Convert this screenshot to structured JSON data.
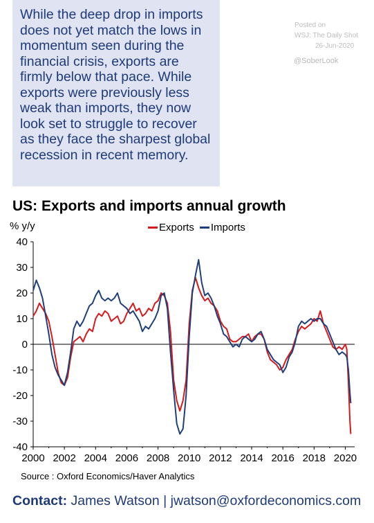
{
  "callout_text": "While the deep drop in imports does not yet match the lows in momentum seen during the financial crisis, exports are firmly below that pace. While exports were previously less weak than imports, they now look set to struggle to recover as they face the sharpest global recession in recent memory.",
  "posted": {
    "line1": "Posted on",
    "line2": "WSJ: The Daily Shot",
    "line3": "26-Jun-2020"
  },
  "handle": "@SoberLook",
  "source": "Source : Oxford Economics/Haver Analytics",
  "contact": {
    "label": "Contact:",
    "text": "James Watson | jwatson@oxfordeconomics.com"
  },
  "colors": {
    "exports": "#d7191c",
    "imports": "#1f3f7a",
    "callout_bg": "#dfe3f2",
    "brand": "#1e3a78"
  },
  "chart_data": {
    "type": "line",
    "title": "US: Exports and imports annual growth",
    "ylabel": "% y/y",
    "ylim": [
      -40,
      40
    ],
    "xlim": [
      2000,
      2020.6
    ],
    "yticks": [
      "40",
      "30",
      "20",
      "10",
      "0",
      "-10",
      "-20",
      "-30",
      "-40"
    ],
    "xticks": [
      "2000",
      "2002",
      "2004",
      "2006",
      "2008",
      "2010",
      "2012",
      "2014",
      "2016",
      "2018",
      "2020"
    ],
    "grid": false,
    "legend": "top-center",
    "series": [
      {
        "name": "Exports",
        "points": [
          [
            2000.0,
            11
          ],
          [
            2000.2,
            13
          ],
          [
            2000.4,
            16
          ],
          [
            2000.6,
            14
          ],
          [
            2000.8,
            12
          ],
          [
            2001.0,
            9
          ],
          [
            2001.2,
            3
          ],
          [
            2001.4,
            -4
          ],
          [
            2001.6,
            -11
          ],
          [
            2001.8,
            -15
          ],
          [
            2002.0,
            -16
          ],
          [
            2002.2,
            -13
          ],
          [
            2002.4,
            -5
          ],
          [
            2002.6,
            1
          ],
          [
            2002.8,
            2
          ],
          [
            2003.0,
            3
          ],
          [
            2003.2,
            1
          ],
          [
            2003.4,
            4
          ],
          [
            2003.6,
            6
          ],
          [
            2003.8,
            5
          ],
          [
            2004.0,
            10
          ],
          [
            2004.2,
            12
          ],
          [
            2004.4,
            11
          ],
          [
            2004.6,
            13
          ],
          [
            2004.8,
            12
          ],
          [
            2005.0,
            9
          ],
          [
            2005.2,
            10
          ],
          [
            2005.4,
            11
          ],
          [
            2005.6,
            8
          ],
          [
            2005.8,
            9
          ],
          [
            2006.0,
            12
          ],
          [
            2006.2,
            14
          ],
          [
            2006.4,
            16
          ],
          [
            2006.6,
            13
          ],
          [
            2006.8,
            14
          ],
          [
            2007.0,
            11
          ],
          [
            2007.2,
            12
          ],
          [
            2007.4,
            14
          ],
          [
            2007.6,
            13
          ],
          [
            2007.8,
            16
          ],
          [
            2008.0,
            17
          ],
          [
            2008.2,
            20
          ],
          [
            2008.4,
            19
          ],
          [
            2008.6,
            16
          ],
          [
            2008.8,
            5
          ],
          [
            2009.0,
            -14
          ],
          [
            2009.2,
            -22
          ],
          [
            2009.4,
            -26
          ],
          [
            2009.6,
            -22
          ],
          [
            2009.8,
            -14
          ],
          [
            2010.0,
            8
          ],
          [
            2010.2,
            21
          ],
          [
            2010.4,
            26
          ],
          [
            2010.6,
            22
          ],
          [
            2010.8,
            19
          ],
          [
            2011.0,
            17
          ],
          [
            2011.2,
            18
          ],
          [
            2011.4,
            16
          ],
          [
            2011.6,
            15
          ],
          [
            2011.8,
            13
          ],
          [
            2012.0,
            9
          ],
          [
            2012.2,
            7
          ],
          [
            2012.4,
            6
          ],
          [
            2012.6,
            2
          ],
          [
            2012.8,
            1
          ],
          [
            2013.0,
            1
          ],
          [
            2013.2,
            2
          ],
          [
            2013.4,
            3
          ],
          [
            2013.6,
            3
          ],
          [
            2013.8,
            4
          ],
          [
            2014.0,
            1
          ],
          [
            2014.2,
            3
          ],
          [
            2014.4,
            4
          ],
          [
            2014.6,
            4
          ],
          [
            2014.8,
            2
          ],
          [
            2015.0,
            -3
          ],
          [
            2015.2,
            -6
          ],
          [
            2015.4,
            -7
          ],
          [
            2015.6,
            -8
          ],
          [
            2015.8,
            -10
          ],
          [
            2016.0,
            -9
          ],
          [
            2016.2,
            -6
          ],
          [
            2016.4,
            -4
          ],
          [
            2016.6,
            -2
          ],
          [
            2016.8,
            2
          ],
          [
            2017.0,
            5
          ],
          [
            2017.2,
            7
          ],
          [
            2017.4,
            6
          ],
          [
            2017.6,
            7
          ],
          [
            2017.8,
            8
          ],
          [
            2018.0,
            10
          ],
          [
            2018.2,
            9
          ],
          [
            2018.4,
            13
          ],
          [
            2018.6,
            8
          ],
          [
            2018.8,
            5
          ],
          [
            2019.0,
            2
          ],
          [
            2019.2,
            -1
          ],
          [
            2019.4,
            -2
          ],
          [
            2019.6,
            -1
          ],
          [
            2019.8,
            -2
          ],
          [
            2020.0,
            0
          ],
          [
            2020.1,
            -2
          ],
          [
            2020.2,
            -15
          ],
          [
            2020.3,
            -30
          ],
          [
            2020.35,
            -35
          ]
        ]
      },
      {
        "name": "Imports",
        "points": [
          [
            2000.0,
            21
          ],
          [
            2000.2,
            25
          ],
          [
            2000.4,
            22
          ],
          [
            2000.6,
            18
          ],
          [
            2000.8,
            11
          ],
          [
            2001.0,
            4
          ],
          [
            2001.2,
            -4
          ],
          [
            2001.4,
            -9
          ],
          [
            2001.6,
            -12
          ],
          [
            2001.8,
            -14
          ],
          [
            2002.0,
            -16
          ],
          [
            2002.2,
            -11
          ],
          [
            2002.4,
            -3
          ],
          [
            2002.6,
            6
          ],
          [
            2002.8,
            9
          ],
          [
            2003.0,
            7
          ],
          [
            2003.2,
            9
          ],
          [
            2003.4,
            12
          ],
          [
            2003.6,
            15
          ],
          [
            2003.8,
            16
          ],
          [
            2004.0,
            19
          ],
          [
            2004.2,
            21
          ],
          [
            2004.4,
            18
          ],
          [
            2004.6,
            17
          ],
          [
            2004.8,
            18
          ],
          [
            2005.0,
            17
          ],
          [
            2005.2,
            18
          ],
          [
            2005.4,
            20
          ],
          [
            2005.6,
            16
          ],
          [
            2005.8,
            15
          ],
          [
            2006.0,
            14
          ],
          [
            2006.2,
            12
          ],
          [
            2006.4,
            13
          ],
          [
            2006.6,
            11
          ],
          [
            2006.8,
            9
          ],
          [
            2007.0,
            5
          ],
          [
            2007.2,
            7
          ],
          [
            2007.4,
            6
          ],
          [
            2007.6,
            8
          ],
          [
            2007.8,
            10
          ],
          [
            2008.0,
            13
          ],
          [
            2008.2,
            19
          ],
          [
            2008.4,
            20
          ],
          [
            2008.6,
            14
          ],
          [
            2008.8,
            -3
          ],
          [
            2009.0,
            -18
          ],
          [
            2009.2,
            -31
          ],
          [
            2009.4,
            -35
          ],
          [
            2009.6,
            -33
          ],
          [
            2009.8,
            -20
          ],
          [
            2010.0,
            3
          ],
          [
            2010.2,
            20
          ],
          [
            2010.4,
            27
          ],
          [
            2010.6,
            33
          ],
          [
            2010.8,
            24
          ],
          [
            2011.0,
            19
          ],
          [
            2011.2,
            20
          ],
          [
            2011.4,
            18
          ],
          [
            2011.6,
            15
          ],
          [
            2011.8,
            11
          ],
          [
            2012.0,
            8
          ],
          [
            2012.2,
            4
          ],
          [
            2012.4,
            3
          ],
          [
            2012.6,
            1
          ],
          [
            2012.8,
            -1
          ],
          [
            2013.0,
            0
          ],
          [
            2013.2,
            -1
          ],
          [
            2013.4,
            2
          ],
          [
            2013.6,
            3
          ],
          [
            2013.8,
            2
          ],
          [
            2014.0,
            1
          ],
          [
            2014.2,
            2
          ],
          [
            2014.4,
            4
          ],
          [
            2014.6,
            5
          ],
          [
            2014.8,
            2
          ],
          [
            2015.0,
            -2
          ],
          [
            2015.2,
            -4
          ],
          [
            2015.4,
            -6
          ],
          [
            2015.6,
            -7
          ],
          [
            2015.8,
            -8
          ],
          [
            2016.0,
            -11
          ],
          [
            2016.2,
            -9
          ],
          [
            2016.4,
            -5
          ],
          [
            2016.6,
            -3
          ],
          [
            2016.8,
            1
          ],
          [
            2017.0,
            7
          ],
          [
            2017.2,
            9
          ],
          [
            2017.4,
            8
          ],
          [
            2017.6,
            9
          ],
          [
            2017.8,
            10
          ],
          [
            2018.0,
            9
          ],
          [
            2018.2,
            10
          ],
          [
            2018.4,
            10
          ],
          [
            2018.6,
            8
          ],
          [
            2018.8,
            7
          ],
          [
            2019.0,
            4
          ],
          [
            2019.2,
            1
          ],
          [
            2019.4,
            -2
          ],
          [
            2019.6,
            -4
          ],
          [
            2019.8,
            -3
          ],
          [
            2020.0,
            -4
          ],
          [
            2020.1,
            -5
          ],
          [
            2020.2,
            -10
          ],
          [
            2020.3,
            -19
          ],
          [
            2020.35,
            -23
          ]
        ]
      }
    ]
  }
}
